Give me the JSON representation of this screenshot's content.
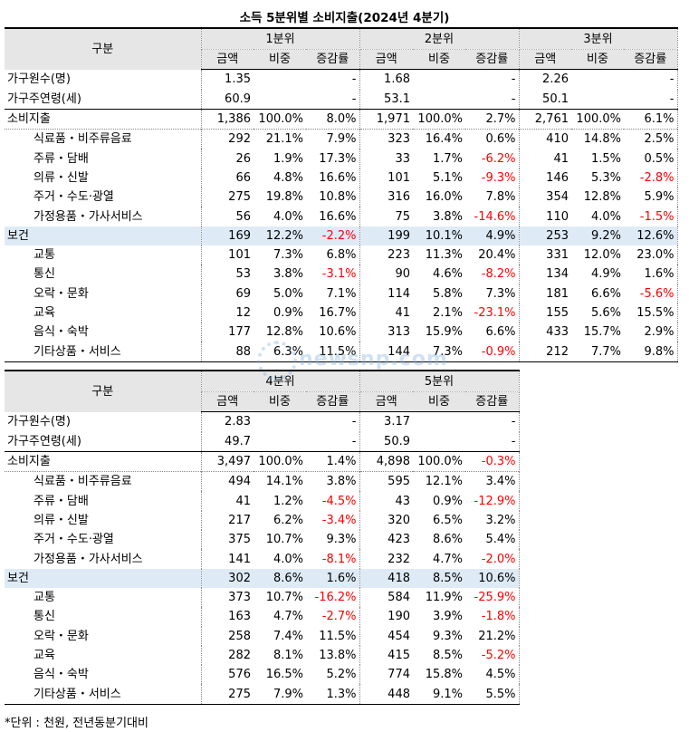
{
  "title": "소득 5분위별 소비지출(2024년 4분기)",
  "note": "*단위 : 천원, 전년동분기대비",
  "watermark": "newsnp.com",
  "labels": {
    "category": "구분",
    "amount": "금액",
    "share": "비중",
    "change": "증감률"
  },
  "tables": [
    {
      "quintiles": [
        "1분위",
        "2분위",
        "3분위"
      ],
      "rows": [
        {
          "label": "가구원수(명)",
          "sub": false,
          "block": "first",
          "cells": [
            [
              "1.35",
              "",
              "-"
            ],
            [
              "1.68",
              "",
              "-"
            ],
            [
              "2.26",
              "",
              "-"
            ]
          ]
        },
        {
          "label": "가구주연령(세)",
          "sub": false,
          "block": "",
          "cells": [
            [
              "60.9",
              "",
              "-"
            ],
            [
              "53.1",
              "",
              "-"
            ],
            [
              "50.1",
              "",
              "-"
            ]
          ]
        },
        {
          "label": "소비지출",
          "sub": false,
          "block": "top",
          "cells": [
            [
              "1,386",
              "100.0%",
              "8.0%"
            ],
            [
              "1,971",
              "100.0%",
              "2.7%"
            ],
            [
              "2,761",
              "100.0%",
              "6.1%"
            ]
          ]
        },
        {
          "label": "식료품・비주류음료",
          "sub": true,
          "block": "top2",
          "cells": [
            [
              "292",
              "21.1%",
              "7.9%"
            ],
            [
              "323",
              "16.4%",
              "0.6%"
            ],
            [
              "410",
              "14.8%",
              "2.5%"
            ]
          ]
        },
        {
          "label": "주류・담배",
          "sub": true,
          "block": "",
          "cells": [
            [
              "26",
              "1.9%",
              "17.3%"
            ],
            [
              "33",
              "1.7%",
              "-6.2%"
            ],
            [
              "41",
              "1.5%",
              "0.5%"
            ]
          ]
        },
        {
          "label": "의류・신발",
          "sub": true,
          "block": "",
          "cells": [
            [
              "66",
              "4.8%",
              "16.6%"
            ],
            [
              "101",
              "5.1%",
              "-9.3%"
            ],
            [
              "146",
              "5.3%",
              "-2.8%"
            ]
          ]
        },
        {
          "label": "주거・수도·광열",
          "sub": true,
          "block": "",
          "cells": [
            [
              "275",
              "19.8%",
              "10.8%"
            ],
            [
              "316",
              "16.0%",
              "7.8%"
            ],
            [
              "354",
              "12.8%",
              "5.9%"
            ]
          ]
        },
        {
          "label": "가정용품・가사서비스",
          "sub": true,
          "block": "",
          "cells": [
            [
              "56",
              "4.0%",
              "16.6%"
            ],
            [
              "75",
              "3.8%",
              "-14.6%"
            ],
            [
              "110",
              "4.0%",
              "-1.5%"
            ]
          ]
        },
        {
          "label": "보건",
          "sub": false,
          "block": "hl",
          "cells": [
            [
              "169",
              "12.2%",
              "-2.2%"
            ],
            [
              "199",
              "10.1%",
              "4.9%"
            ],
            [
              "253",
              "9.2%",
              "12.6%"
            ]
          ]
        },
        {
          "label": "교통",
          "sub": true,
          "block": "",
          "cells": [
            [
              "101",
              "7.3%",
              "6.8%"
            ],
            [
              "223",
              "11.3%",
              "20.4%"
            ],
            [
              "331",
              "12.0%",
              "23.0%"
            ]
          ]
        },
        {
          "label": "통신",
          "sub": true,
          "block": "",
          "cells": [
            [
              "53",
              "3.8%",
              "-3.1%"
            ],
            [
              "90",
              "4.6%",
              "-8.2%"
            ],
            [
              "134",
              "4.9%",
              "1.6%"
            ]
          ]
        },
        {
          "label": "오락・문화",
          "sub": true,
          "block": "",
          "cells": [
            [
              "69",
              "5.0%",
              "7.1%"
            ],
            [
              "114",
              "5.8%",
              "7.3%"
            ],
            [
              "181",
              "6.6%",
              "-5.6%"
            ]
          ]
        },
        {
          "label": "교육",
          "sub": true,
          "block": "",
          "cells": [
            [
              "12",
              "0.9%",
              "16.7%"
            ],
            [
              "41",
              "2.1%",
              "-23.1%"
            ],
            [
              "155",
              "5.6%",
              "15.5%"
            ]
          ]
        },
        {
          "label": "음식・숙박",
          "sub": true,
          "block": "",
          "cells": [
            [
              "177",
              "12.8%",
              "10.6%"
            ],
            [
              "313",
              "15.9%",
              "6.6%"
            ],
            [
              "433",
              "15.7%",
              "2.9%"
            ]
          ]
        },
        {
          "label": "기타상품・서비스",
          "sub": true,
          "block": "last",
          "cells": [
            [
              "88",
              "6.3%",
              "11.5%"
            ],
            [
              "144",
              "7.3%",
              "-0.9%"
            ],
            [
              "212",
              "7.7%",
              "9.8%"
            ]
          ]
        }
      ]
    },
    {
      "quintiles": [
        "4분위",
        "5분위"
      ],
      "rows": [
        {
          "label": "가구원수(명)",
          "sub": false,
          "block": "first",
          "cells": [
            [
              "2.83",
              "",
              "-"
            ],
            [
              "3.17",
              "",
              "-"
            ]
          ]
        },
        {
          "label": "가구주연령(세)",
          "sub": false,
          "block": "",
          "cells": [
            [
              "49.7",
              "",
              "-"
            ],
            [
              "50.9",
              "",
              "-"
            ]
          ]
        },
        {
          "label": "소비지출",
          "sub": false,
          "block": "top",
          "cells": [
            [
              "3,497",
              "100.0%",
              "1.4%"
            ],
            [
              "4,898",
              "100.0%",
              "-0.3%"
            ]
          ]
        },
        {
          "label": "식료품・비주류음료",
          "sub": true,
          "block": "top2",
          "cells": [
            [
              "494",
              "14.1%",
              "3.8%"
            ],
            [
              "595",
              "12.1%",
              "3.4%"
            ]
          ]
        },
        {
          "label": "주류・담배",
          "sub": true,
          "block": "",
          "cells": [
            [
              "41",
              "1.2%",
              "-4.5%"
            ],
            [
              "43",
              "0.9%",
              "-12.9%"
            ]
          ]
        },
        {
          "label": "의류・신발",
          "sub": true,
          "block": "",
          "cells": [
            [
              "217",
              "6.2%",
              "-3.4%"
            ],
            [
              "320",
              "6.5%",
              "3.2%"
            ]
          ]
        },
        {
          "label": "주거・수도·광열",
          "sub": true,
          "block": "",
          "cells": [
            [
              "375",
              "10.7%",
              "9.3%"
            ],
            [
              "423",
              "8.6%",
              "5.4%"
            ]
          ]
        },
        {
          "label": "가정용품・가사서비스",
          "sub": true,
          "block": "",
          "cells": [
            [
              "141",
              "4.0%",
              "-8.1%"
            ],
            [
              "232",
              "4.7%",
              "-2.0%"
            ]
          ]
        },
        {
          "label": "보건",
          "sub": false,
          "block": "hl",
          "cells": [
            [
              "302",
              "8.6%",
              "1.6%"
            ],
            [
              "418",
              "8.5%",
              "10.6%"
            ]
          ]
        },
        {
          "label": "교통",
          "sub": true,
          "block": "",
          "cells": [
            [
              "373",
              "10.7%",
              "-16.2%"
            ],
            [
              "584",
              "11.9%",
              "-25.9%"
            ]
          ]
        },
        {
          "label": "통신",
          "sub": true,
          "block": "",
          "cells": [
            [
              "163",
              "4.7%",
              "-2.7%"
            ],
            [
              "190",
              "3.9%",
              "-1.8%"
            ]
          ]
        },
        {
          "label": "오락・문화",
          "sub": true,
          "block": "",
          "cells": [
            [
              "258",
              "7.4%",
              "11.5%"
            ],
            [
              "454",
              "9.3%",
              "21.2%"
            ]
          ]
        },
        {
          "label": "교육",
          "sub": true,
          "block": "",
          "cells": [
            [
              "282",
              "8.1%",
              "13.8%"
            ],
            [
              "415",
              "8.5%",
              "-5.2%"
            ]
          ]
        },
        {
          "label": "음식・숙박",
          "sub": true,
          "block": "",
          "cells": [
            [
              "576",
              "16.5%",
              "5.2%"
            ],
            [
              "774",
              "15.8%",
              "4.5%"
            ]
          ]
        },
        {
          "label": "기타상품・서비스",
          "sub": true,
          "block": "last",
          "cells": [
            [
              "275",
              "7.9%",
              "1.3%"
            ],
            [
              "448",
              "9.1%",
              "5.5%"
            ]
          ]
        }
      ]
    }
  ]
}
